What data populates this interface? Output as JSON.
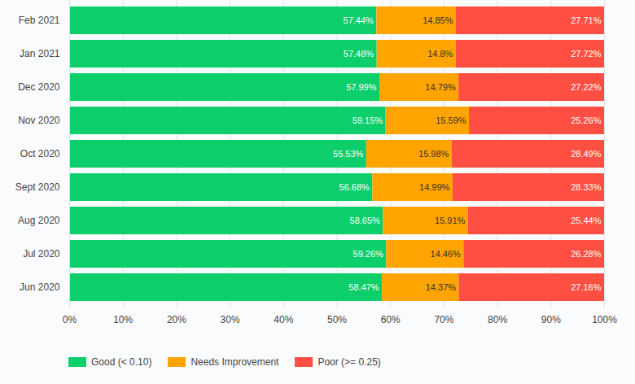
{
  "chart_data": {
    "type": "bar",
    "orientation": "horizontal",
    "stacked": true,
    "data_labels": true,
    "grid": true,
    "legend": "bottom-left",
    "categories": [
      "Feb 2021",
      "Jan 2021",
      "Dec 2020",
      "Nov 2020",
      "Oct 2020",
      "Sept 2020",
      "Aug 2020",
      "Jul 2020",
      "Jun 2020"
    ],
    "series": [
      {
        "name": "Good (< 0.10)",
        "color": "#0cce6b",
        "values": [
          57.44,
          57.48,
          57.99,
          59.15,
          55.53,
          56.68,
          58.65,
          59.26,
          58.47
        ],
        "value_labels": [
          "57.44%",
          "57.48%",
          "57.99%",
          "59.15%",
          "55.53%",
          "56.68%",
          "58.65%",
          "59.26%",
          "58.47%"
        ]
      },
      {
        "name": "Needs Improvement",
        "color": "#ffa400",
        "values": [
          14.85,
          14.8,
          14.79,
          15.59,
          15.98,
          14.99,
          15.91,
          14.46,
          14.37
        ],
        "value_labels": [
          "14.85%",
          "14.8%",
          "14.79%",
          "15.59%",
          "15.98%",
          "14.99%",
          "15.91%",
          "14.46%",
          "14.37%"
        ]
      },
      {
        "name": "Poor (>= 0.25)",
        "color": "#ff4e42",
        "values": [
          27.71,
          27.72,
          27.22,
          25.26,
          28.49,
          28.33,
          25.44,
          26.28,
          27.16
        ],
        "value_labels": [
          "27.71%",
          "27.72%",
          "27.22%",
          "25.26%",
          "28.49%",
          "28.33%",
          "25.44%",
          "26.28%",
          "27.16%"
        ]
      }
    ],
    "xlim": [
      0,
      100
    ],
    "xticks": [
      {
        "value": 0,
        "label": "0%"
      },
      {
        "value": 10,
        "label": "10%"
      },
      {
        "value": 20,
        "label": "20%"
      },
      {
        "value": 30,
        "label": "30%"
      },
      {
        "value": 40,
        "label": "40%"
      },
      {
        "value": 50,
        "label": "50%"
      },
      {
        "value": 60,
        "label": "60%"
      },
      {
        "value": 70,
        "label": "70%"
      },
      {
        "value": 80,
        "label": "80%"
      },
      {
        "value": 90,
        "label": "90%"
      },
      {
        "value": 100,
        "label": "100%"
      }
    ]
  }
}
